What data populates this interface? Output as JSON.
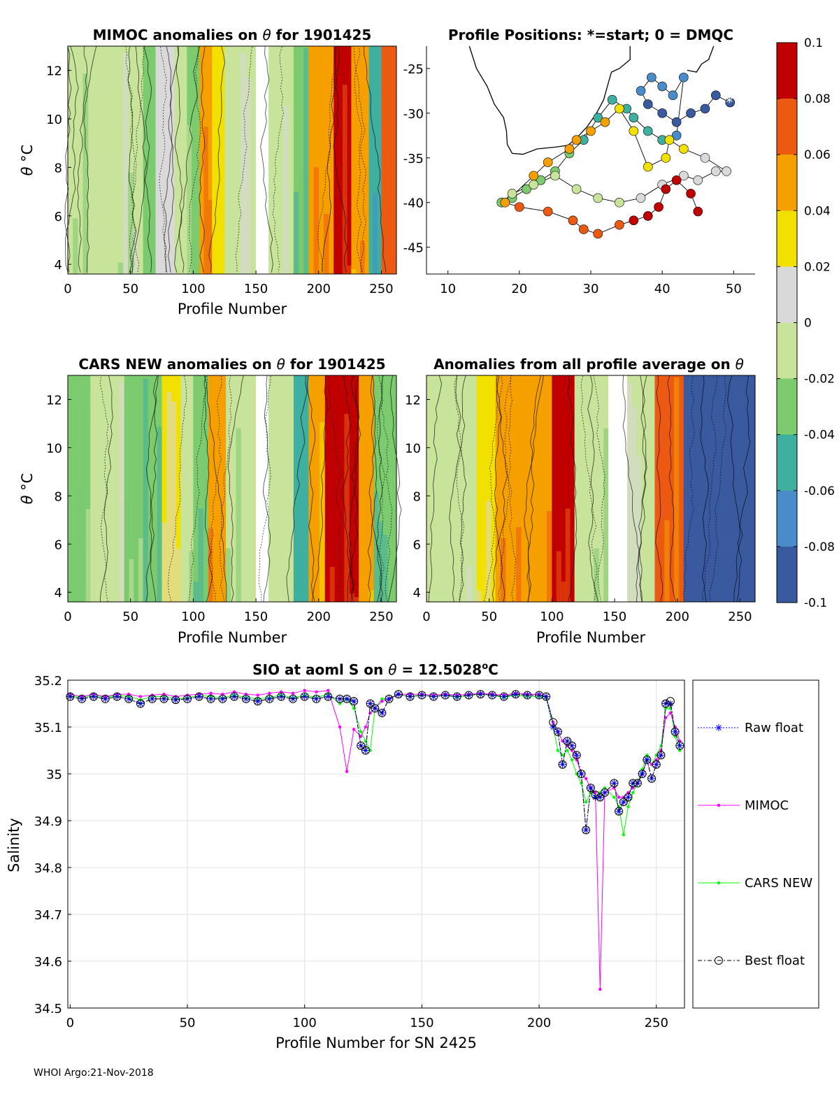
{
  "footer": "WHOI Argo:21-Nov-2018",
  "colors": {
    "raw_float": "#0000ff",
    "mimoc": "#ff00ff",
    "cars_new": "#00ff00",
    "best_float": "#000000",
    "colorbar": [
      "#3a5a9f",
      "#4a8cc9",
      "#3fb0a0",
      "#7ccb6f",
      "#c8e39a",
      "#d9d9d9",
      "#f1e000",
      "#f6a000",
      "#ec5a12",
      "#c00000"
    ]
  },
  "chart_data": [
    {
      "id": "mimoc-anomaly",
      "type": "heatmap",
      "title_prefix": "MIMOC anomalies on",
      "title_theta": "θ",
      "title_suffix": " for 1901425",
      "xlabel": "Profile Number",
      "ylabel_theta": "θ",
      "ylabel_unit": "°C",
      "xlim": [
        0,
        262
      ],
      "ylim": [
        3.6,
        13
      ],
      "xticks": [
        0,
        50,
        100,
        150,
        200,
        250
      ],
      "yticks": [
        4,
        6,
        8,
        10,
        12
      ],
      "bands": [
        {
          "x0": 0,
          "x1": 60,
          "v": -0.012
        },
        {
          "x0": 60,
          "x1": 70,
          "v": -0.03
        },
        {
          "x0": 70,
          "x1": 85,
          "v": 0.015
        },
        {
          "x0": 85,
          "x1": 95,
          "v": -0.005
        },
        {
          "x0": 95,
          "x1": 105,
          "v": -0.02
        },
        {
          "x0": 105,
          "x1": 115,
          "v": 0.06
        },
        {
          "x0": 115,
          "x1": 125,
          "v": 0.03
        },
        {
          "x0": 125,
          "x1": 150,
          "v": -0.01
        },
        {
          "x0": 150,
          "x1": 160,
          "v": null
        },
        {
          "x0": 160,
          "x1": 180,
          "v": -0.005
        },
        {
          "x0": 180,
          "x1": 192,
          "v": -0.04
        },
        {
          "x0": 192,
          "x1": 212,
          "v": 0.06
        },
        {
          "x0": 212,
          "x1": 226,
          "v": 0.08
        },
        {
          "x0": 226,
          "x1": 240,
          "v": 0.05
        },
        {
          "x0": 240,
          "x1": 250,
          "v": -0.05
        },
        {
          "x0": 250,
          "x1": 262,
          "v": 0.07
        }
      ]
    },
    {
      "id": "profile-positions",
      "type": "scatter",
      "title": "Profile Positions: *=start; 0 = DMQC",
      "xlim": [
        7,
        53
      ],
      "ylim": [
        -48,
        -22.5
      ],
      "xticks": [
        10,
        20,
        30,
        40,
        50
      ],
      "yticks": [
        -25,
        -30,
        -35,
        -40,
        -45
      ],
      "x": [
        49.5,
        47.5,
        46,
        44,
        42,
        40,
        38,
        37,
        38.5,
        40,
        41.5,
        43,
        42,
        40,
        38,
        36,
        35,
        33,
        31,
        29,
        27,
        25,
        23,
        21,
        19,
        17.5,
        19,
        22,
        25,
        28,
        31,
        34,
        37,
        40,
        43,
        45,
        47.5,
        49,
        46,
        43,
        41,
        40.5,
        38,
        36,
        34,
        32,
        30,
        28,
        27,
        24,
        22,
        18,
        20,
        24,
        27.5,
        29,
        31,
        34,
        36,
        38,
        39.5,
        40.5,
        42,
        44,
        45
      ],
      "y": [
        -28.8,
        -28,
        -29.5,
        -30,
        -31,
        -30,
        -29,
        -27.5,
        -26,
        -27,
        -28,
        -26,
        -32.5,
        -33,
        -32,
        -30.5,
        -29.5,
        -28.5,
        -30.5,
        -33,
        -34.5,
        -36.5,
        -37.5,
        -38.5,
        -39.5,
        -40,
        -39,
        -38,
        -37,
        -38.5,
        -39.5,
        -40,
        -39.5,
        -38,
        -37,
        -37.5,
        -36.5,
        -36.5,
        -35,
        -34,
        -33,
        -35,
        -36,
        -32,
        -29.5,
        -31,
        -32,
        -33,
        -34,
        -35.5,
        -37,
        -40,
        -40.5,
        -41,
        -42,
        -43,
        -43.5,
        -42.5,
        -42,
        -41.5,
        -40.5,
        -38.5,
        -37.5,
        -39,
        -41
      ],
      "coast": [
        [
          13,
          -22.5
        ],
        [
          14,
          -25
        ],
        [
          15.5,
          -27
        ],
        [
          16.5,
          -29
        ],
        [
          17.8,
          -30.5
        ],
        [
          18.2,
          -32
        ],
        [
          18.3,
          -33.5
        ],
        [
          19,
          -34.5
        ],
        [
          20.5,
          -34.6
        ],
        [
          22.5,
          -34
        ],
        [
          25,
          -33.8
        ],
        [
          26.8,
          -33.6
        ],
        [
          28,
          -32.8
        ],
        [
          29.5,
          -31.5
        ],
        [
          30.8,
          -30
        ],
        [
          31.8,
          -28.5
        ],
        [
          32.5,
          -26.5
        ],
        [
          32.9,
          -25.4
        ],
        [
          34,
          -25
        ],
        [
          35.5,
          -24
        ],
        [
          35.5,
          -22.5
        ]
      ],
      "madagascar": [
        [
          43.5,
          -25.2
        ],
        [
          44.8,
          -25.4
        ],
        [
          45.5,
          -24.5
        ],
        [
          46.5,
          -24
        ],
        [
          47.2,
          -22.5
        ]
      ]
    },
    {
      "id": "cars-anomaly",
      "type": "heatmap",
      "title_prefix": "CARS NEW anomalies on",
      "title_theta": "θ",
      "title_suffix": " for 1901425",
      "xlabel": "Profile Number",
      "ylabel_theta": "θ",
      "ylabel_unit": "°C",
      "xlim": [
        0,
        262
      ],
      "ylim": [
        3.6,
        13
      ],
      "xticks": [
        0,
        50,
        100,
        150,
        200,
        250
      ],
      "yticks": [
        4,
        6,
        8,
        10,
        12
      ],
      "bands": [
        {
          "x0": 0,
          "x1": 18,
          "v": -0.02
        },
        {
          "x0": 18,
          "x1": 45,
          "v": -0.008
        },
        {
          "x0": 45,
          "x1": 60,
          "v": -0.025
        },
        {
          "x0": 60,
          "x1": 75,
          "v": -0.035
        },
        {
          "x0": 75,
          "x1": 90,
          "v": 0.02
        },
        {
          "x0": 90,
          "x1": 100,
          "v": -0.01
        },
        {
          "x0": 100,
          "x1": 112,
          "v": -0.04
        },
        {
          "x0": 112,
          "x1": 126,
          "v": 0.05
        },
        {
          "x0": 126,
          "x1": 150,
          "v": -0.015
        },
        {
          "x0": 150,
          "x1": 160,
          "v": null
        },
        {
          "x0": 160,
          "x1": 180,
          "v": -0.01
        },
        {
          "x0": 180,
          "x1": 192,
          "v": -0.045
        },
        {
          "x0": 192,
          "x1": 205,
          "v": 0.05
        },
        {
          "x0": 205,
          "x1": 232,
          "v": 0.08
        },
        {
          "x0": 232,
          "x1": 244,
          "v": 0.04
        },
        {
          "x0": 244,
          "x1": 262,
          "v": -0.04
        }
      ]
    },
    {
      "id": "all-profile-anomaly",
      "type": "heatmap",
      "title_prefix": "Anomalies from all profile average on",
      "title_theta": "θ",
      "title_suffix": "",
      "xlabel": "Profile Number",
      "xlim": [
        0,
        262
      ],
      "ylim": [
        3.6,
        13
      ],
      "xticks": [
        0,
        50,
        100,
        150,
        200,
        250
      ],
      "yticks": [
        4,
        6,
        8,
        10,
        12
      ],
      "bands": [
        {
          "x0": 0,
          "x1": 40,
          "v": -0.005
        },
        {
          "x0": 40,
          "x1": 55,
          "v": 0.02
        },
        {
          "x0": 55,
          "x1": 100,
          "v": 0.06
        },
        {
          "x0": 100,
          "x1": 118,
          "v": 0.08
        },
        {
          "x0": 118,
          "x1": 145,
          "v": -0.015
        },
        {
          "x0": 145,
          "x1": 160,
          "v": null
        },
        {
          "x0": 160,
          "x1": 182,
          "v": -0.005
        },
        {
          "x0": 182,
          "x1": 205,
          "v": 0.07
        },
        {
          "x0": 205,
          "x1": 262,
          "v": -0.095
        }
      ]
    },
    {
      "id": "colorbar",
      "type": "heatmap",
      "ylim": [
        -0.1,
        0.1
      ],
      "ticks": [
        0.1,
        0.08,
        0.06,
        0.04,
        0.02,
        0,
        -0.02,
        -0.04,
        -0.06,
        -0.08,
        -0.1
      ],
      "tick_labels": [
        "0.1",
        "0.08",
        "0.06",
        "0.04",
        "0.02",
        "0",
        "-0.02",
        "-0.04",
        "-0.06",
        "-0.08",
        "-0.1"
      ]
    },
    {
      "id": "salinity-series",
      "type": "line",
      "title_prefix": "SIO at aoml S on",
      "title_theta": "θ",
      "title_mid": " = 12.5028",
      "title_sup": "o",
      "title_end": "C",
      "xlabel": "Profile Number for SN 2425",
      "ylabel": "Salinity",
      "xlim": [
        -1,
        262
      ],
      "ylim": [
        34.5,
        35.2
      ],
      "xticks": [
        0,
        50,
        100,
        150,
        200,
        250
      ],
      "ytick_labels": [
        "35.2",
        "35.1",
        "35",
        "34.9",
        "34.8",
        "34.7",
        "34.6",
        "34.5"
      ],
      "ytick_values": [
        35.2,
        35.1,
        35.0,
        34.9,
        34.8,
        34.7,
        34.6,
        34.5
      ],
      "legend": [
        "Raw float",
        "MIMOC",
        "CARS NEW",
        "Best float"
      ],
      "x": [
        0,
        5,
        10,
        15,
        20,
        25,
        30,
        35,
        40,
        45,
        50,
        55,
        60,
        65,
        70,
        75,
        80,
        85,
        90,
        95,
        100,
        105,
        110,
        115,
        118,
        121,
        124,
        126,
        128,
        130,
        133,
        136,
        140,
        145,
        150,
        155,
        160,
        165,
        170,
        175,
        180,
        185,
        190,
        195,
        200,
        203,
        206,
        208,
        210,
        212,
        214,
        216,
        218,
        220,
        222,
        224,
        226,
        228,
        232,
        234,
        236,
        238,
        240,
        242,
        244,
        246,
        248,
        250,
        252,
        254,
        256,
        258,
        260
      ],
      "series": [
        {
          "name": "Raw float",
          "values": [
            35.165,
            35.16,
            35.165,
            35.16,
            35.165,
            35.16,
            35.15,
            35.16,
            35.16,
            35.158,
            35.16,
            35.165,
            35.16,
            35.16,
            35.165,
            35.16,
            35.155,
            35.16,
            35.165,
            35.16,
            35.165,
            35.16,
            35.165,
            35.16,
            35.16,
            35.155,
            35.06,
            35.05,
            35.15,
            35.14,
            35.13,
            35.16,
            35.17,
            35.165,
            35.168,
            35.165,
            35.168,
            35.165,
            35.168,
            35.17,
            35.168,
            35.165,
            35.17,
            35.168,
            35.168,
            35.165,
            35.1,
            35.09,
            35.02,
            35.07,
            35.06,
            35.04,
            35.0,
            34.88,
            34.97,
            34.95,
            34.95,
            34.96,
            34.98,
            34.92,
            34.94,
            34.95,
            34.98,
            34.98,
            35.0,
            35.03,
            34.99,
            35.02,
            35.04,
            35.15,
            35.15,
            35.09,
            35.06
          ]
        },
        {
          "name": "MIMOC",
          "values": [
            35.17,
            35.165,
            35.17,
            35.165,
            35.17,
            35.17,
            35.165,
            35.168,
            35.17,
            35.165,
            35.168,
            35.17,
            35.172,
            35.17,
            35.175,
            35.17,
            35.168,
            35.172,
            35.175,
            35.172,
            35.178,
            35.175,
            35.178,
            35.1,
            35.005,
            35.095,
            35.08,
            35.1,
            35.13,
            35.14,
            35.155,
            35.16,
            35.17,
            35.17,
            35.17,
            35.168,
            35.17,
            35.168,
            35.17,
            35.172,
            35.17,
            35.168,
            35.172,
            35.17,
            35.17,
            35.165,
            35.11,
            35.09,
            35.07,
            35.06,
            35.05,
            35.03,
            35.0,
            34.99,
            34.97,
            34.96,
            34.54,
            34.96,
            34.97,
            34.95,
            34.95,
            34.96,
            34.97,
            34.98,
            35.0,
            35.03,
            35.02,
            35.03,
            35.05,
            35.12,
            35.13,
            35.1,
            35.07
          ]
        },
        {
          "name": "CARS NEW",
          "values": [
            35.168,
            35.162,
            35.168,
            35.163,
            35.168,
            35.165,
            35.158,
            35.165,
            35.165,
            35.16,
            35.162,
            35.168,
            35.165,
            35.162,
            35.168,
            35.163,
            35.16,
            35.163,
            35.168,
            35.162,
            35.168,
            35.163,
            35.17,
            35.15,
            35.16,
            35.14,
            35.09,
            35.07,
            35.05,
            35.14,
            35.16,
            35.16,
            35.17,
            35.165,
            35.168,
            35.165,
            35.168,
            35.163,
            35.168,
            35.17,
            35.168,
            35.163,
            35.168,
            35.165,
            35.165,
            35.162,
            35.1,
            35.05,
            35.04,
            35.05,
            35.03,
            35.0,
            34.98,
            34.94,
            34.96,
            34.95,
            34.96,
            34.97,
            34.95,
            34.93,
            34.87,
            34.93,
            34.96,
            34.98,
            35.01,
            35.04,
            35.02,
            35.04,
            35.06,
            35.14,
            35.14,
            35.08,
            35.05
          ]
        },
        {
          "name": "Best float",
          "values": [
            35.165,
            35.16,
            35.165,
            35.16,
            35.165,
            35.16,
            35.15,
            35.16,
            35.16,
            35.158,
            35.16,
            35.165,
            35.16,
            35.16,
            35.165,
            35.16,
            35.155,
            35.16,
            35.165,
            35.16,
            35.165,
            35.16,
            35.165,
            35.16,
            35.16,
            35.155,
            35.06,
            35.05,
            35.15,
            35.14,
            35.13,
            35.16,
            35.17,
            35.165,
            35.168,
            35.165,
            35.168,
            35.165,
            35.168,
            35.17,
            35.168,
            35.165,
            35.17,
            35.168,
            35.168,
            35.165,
            35.11,
            35.09,
            35.02,
            35.07,
            35.06,
            35.04,
            35.0,
            34.88,
            34.97,
            34.955,
            34.95,
            34.96,
            34.98,
            34.92,
            34.94,
            34.95,
            34.98,
            34.98,
            35.0,
            35.03,
            34.99,
            35.02,
            35.04,
            35.15,
            35.155,
            35.09,
            35.06
          ]
        }
      ]
    }
  ]
}
